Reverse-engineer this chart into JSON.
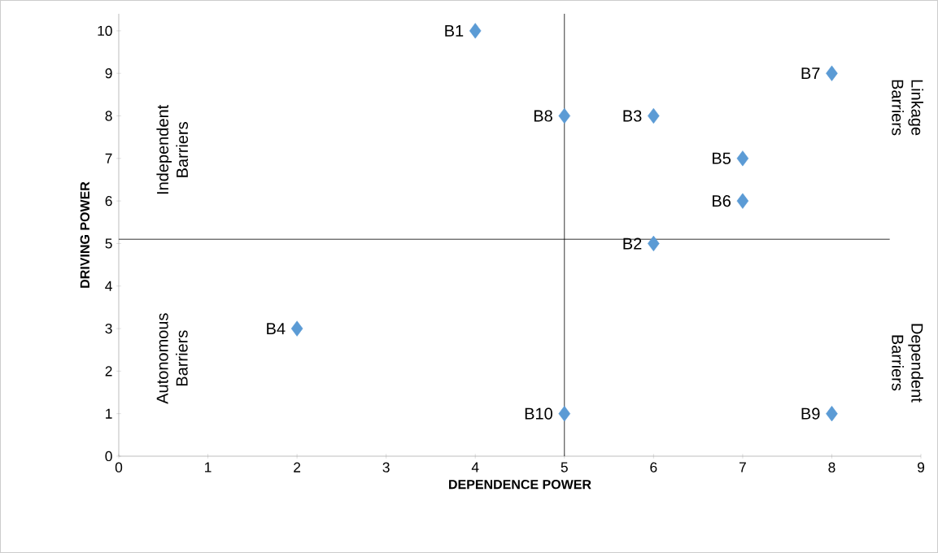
{
  "chart_data": {
    "type": "scatter",
    "xlabel": "DEPENDENCE POWER",
    "ylabel": "DRIVING POWER",
    "x": [
      4,
      6,
      6,
      2,
      7,
      7,
      8,
      5,
      8,
      5
    ],
    "series": [
      {
        "color": "#5b9bd5",
        "values": [
          10,
          5,
          8,
          3,
          7,
          6,
          9,
          8,
          1,
          1
        ]
      }
    ],
    "marker": "diamond",
    "grid": false,
    "xlim": [
      0,
      9
    ],
    "xticks": [
      0,
      1,
      2,
      3,
      4,
      5,
      6,
      7,
      8,
      9
    ],
    "ylim": [
      0,
      10.4
    ],
    "yticks": [
      0,
      1,
      2,
      3,
      4,
      5,
      6,
      7,
      8,
      9,
      10
    ],
    "ref_lines": [
      {
        "axis": "x",
        "value": 5,
        "color": "#000000"
      },
      {
        "axis": "y",
        "value": 5.1,
        "color": "#000000"
      }
    ],
    "annotations": [
      {
        "text": "B1",
        "x": 4,
        "y": 10
      },
      {
        "text": "B2",
        "x": 6,
        "y": 5
      },
      {
        "text": "B3",
        "x": 6,
        "y": 8
      },
      {
        "text": "B4",
        "x": 2,
        "y": 3
      },
      {
        "text": "B5",
        "x": 7,
        "y": 7
      },
      {
        "text": "B6",
        "x": 7,
        "y": 6
      },
      {
        "text": "B7",
        "x": 8,
        "y": 9
      },
      {
        "text": "B8",
        "x": 5,
        "y": 8
      },
      {
        "text": "B9",
        "x": 8,
        "y": 1
      },
      {
        "text": "B10",
        "x": 5,
        "y": 1
      },
      "Independent Barriers",
      "Autonomous Barriers",
      "Linkage Barriers",
      "Dependent Barriers"
    ]
  }
}
